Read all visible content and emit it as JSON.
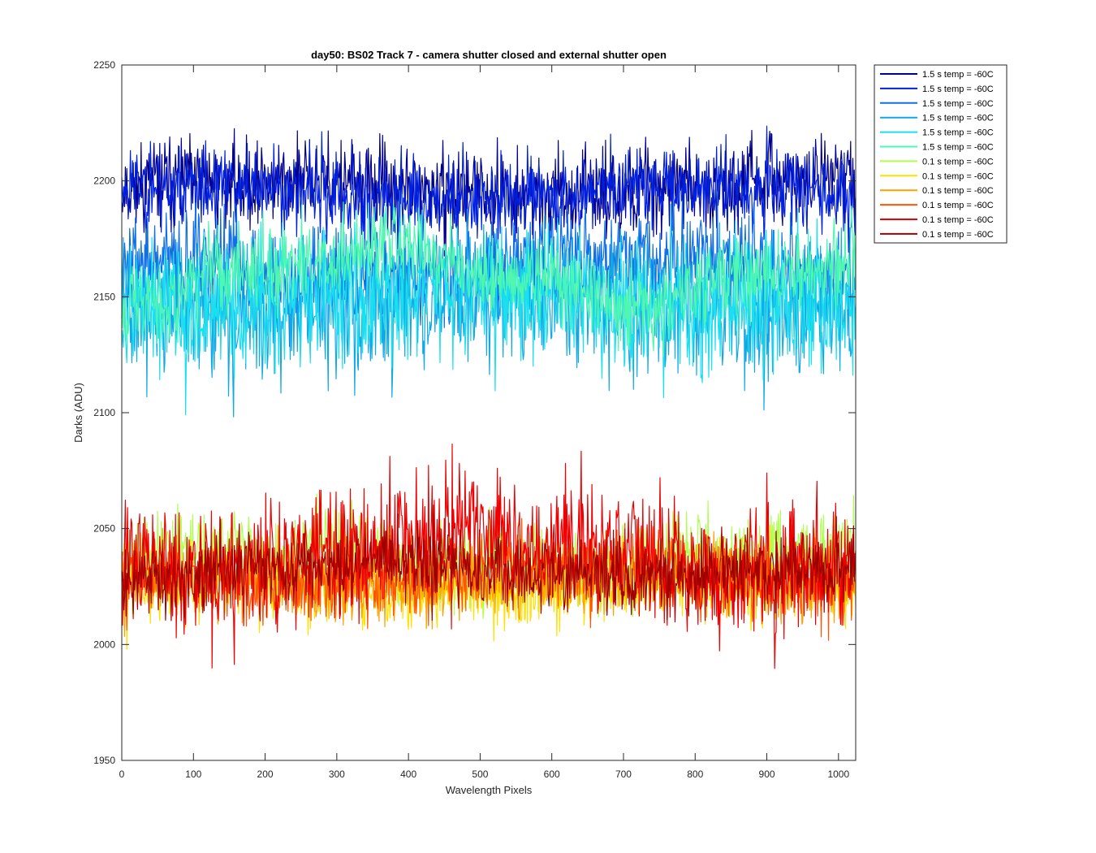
{
  "chart_data": {
    "type": "line",
    "title": "day50: BS02  Track 7 - camera shutter closed and external shutter open",
    "xlabel": "Wavelength Pixels",
    "ylabel": "Darks (ADU)",
    "xlim": [
      0,
      1024
    ],
    "ylim": [
      1950,
      2250
    ],
    "xticks": [
      "0",
      "100",
      "200",
      "300",
      "400",
      "500",
      "600",
      "700",
      "800",
      "900",
      "1000"
    ],
    "yticks": [
      "1950",
      "2000",
      "2050",
      "2100",
      "2150",
      "2200",
      "2250"
    ],
    "grid": false,
    "legend_position": "outside-top-right",
    "series": [
      {
        "name": "1.5 s temp = -60C",
        "color": "#00008f",
        "mean": 2197,
        "noise": 9,
        "trend": 3,
        "seed": 11
      },
      {
        "name": "1.5 s temp = -60C",
        "color": "#0020df",
        "mean": 2195,
        "noise": 9,
        "trend": 3,
        "seed": 23
      },
      {
        "name": "1.5 s temp = -60C",
        "color": "#0f6fe6",
        "mean": 2163,
        "noise": 11,
        "trend": 4,
        "seed": 37
      },
      {
        "name": "1.5 s temp = -60C",
        "color": "#0fa9e6",
        "mean": 2146,
        "noise": 14,
        "trend": 4,
        "seed": 41
      },
      {
        "name": "1.5 s temp = -60C",
        "color": "#19dfef",
        "mean": 2150,
        "noise": 14,
        "trend": 5,
        "seed": 53
      },
      {
        "name": "1.5 s temp = -60C",
        "color": "#50f7b0",
        "mean": 2160,
        "noise": 9,
        "trend": 10,
        "seed": 67
      },
      {
        "name": "0.1 s temp = -60C",
        "color": "#b0ff50",
        "mean": 2037,
        "noise": 9,
        "trend": 3,
        "seed": 71
      },
      {
        "name": "0.1 s temp = -60C",
        "color": "#ffe000",
        "mean": 2025,
        "noise": 8,
        "trend": 2,
        "seed": 83
      },
      {
        "name": "0.1 s temp = -60C",
        "color": "#ffa000",
        "mean": 2028,
        "noise": 8,
        "trend": 2,
        "seed": 97
      },
      {
        "name": "0.1 s temp = -60C",
        "color": "#ff5500",
        "mean": 2030,
        "noise": 8,
        "trend": 3,
        "seed": 101
      },
      {
        "name": "0.1 s temp = -60C",
        "color": "#ee0000",
        "mean": 2040,
        "noise": 14,
        "trend": 8,
        "seed": 113
      },
      {
        "name": "0.1 s temp = -60C",
        "color": "#a00000",
        "mean": 2032,
        "noise": 8,
        "trend": 3,
        "seed": 127
      }
    ]
  }
}
